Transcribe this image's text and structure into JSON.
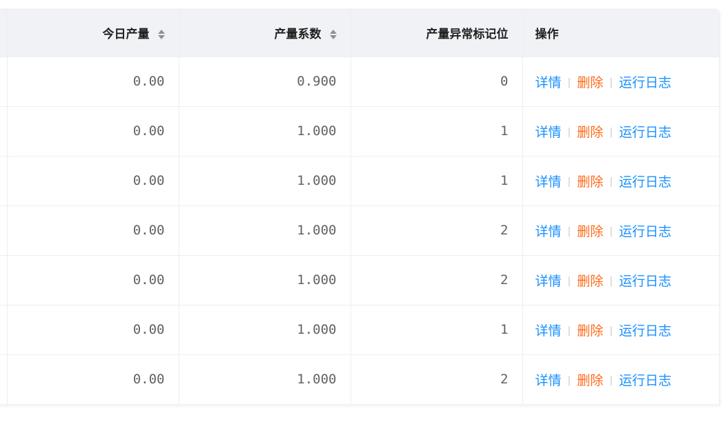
{
  "columns": {
    "today_output": "今日产量",
    "output_coef": "产量系数",
    "abnormal_flag": "产量异常标记位",
    "actions": "操作"
  },
  "actions": {
    "detail": "详情",
    "delete": "删除",
    "log": "运行日志",
    "separator": "|"
  },
  "colors": {
    "link": "#1890ff",
    "danger": "#ff6a1a",
    "header_bg": "#f0f2f5"
  },
  "rows": [
    {
      "today_output": "0.00",
      "output_coef": "0.900",
      "abnormal_flag": "0"
    },
    {
      "today_output": "0.00",
      "output_coef": "1.000",
      "abnormal_flag": "1"
    },
    {
      "today_output": "0.00",
      "output_coef": "1.000",
      "abnormal_flag": "1"
    },
    {
      "today_output": "0.00",
      "output_coef": "1.000",
      "abnormal_flag": "2"
    },
    {
      "today_output": "0.00",
      "output_coef": "1.000",
      "abnormal_flag": "2"
    },
    {
      "today_output": "0.00",
      "output_coef": "1.000",
      "abnormal_flag": "1"
    },
    {
      "today_output": "0.00",
      "output_coef": "1.000",
      "abnormal_flag": "2"
    }
  ]
}
